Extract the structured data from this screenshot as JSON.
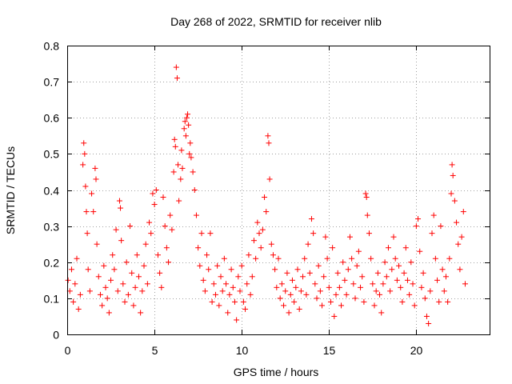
{
  "chart_data": {
    "type": "scatter",
    "title": "Day 268 of 2022, SRMTID for receiver nlib",
    "xlabel": "GPS time / hours",
    "ylabel": "SRMTID / TECUs",
    "xlim": [
      0,
      24.2
    ],
    "ylim": [
      0,
      0.8
    ],
    "x_ticks": [
      0,
      5,
      10,
      15,
      20
    ],
    "x_tick_labels": [
      "0",
      "5",
      "10",
      "15",
      "20"
    ],
    "y_ticks": [
      0,
      0.1,
      0.2,
      0.3,
      0.4,
      0.5,
      0.6,
      0.7,
      0.8
    ],
    "y_tick_labels": [
      "0",
      "0.1",
      "0.2",
      "0.3",
      "0.4",
      "0.5",
      "0.6",
      "0.7",
      "0.8"
    ],
    "grid": true,
    "marker": "+",
    "color": "#ff0000",
    "series": [
      {
        "name": "SRMTID",
        "points": [
          [
            0.05,
            0.15
          ],
          [
            0.15,
            0.12
          ],
          [
            0.25,
            0.18
          ],
          [
            0.35,
            0.09
          ],
          [
            0.45,
            0.14
          ],
          [
            0.55,
            0.21
          ],
          [
            0.65,
            0.07
          ],
          [
            0.75,
            0.11
          ],
          [
            0.9,
            0.47
          ],
          [
            0.95,
            0.53
          ],
          [
            1.0,
            0.5
          ],
          [
            1.05,
            0.41
          ],
          [
            1.1,
            0.34
          ],
          [
            1.15,
            0.28
          ],
          [
            1.2,
            0.18
          ],
          [
            1.3,
            0.12
          ],
          [
            1.4,
            0.39
          ],
          [
            1.5,
            0.34
          ],
          [
            1.6,
            0.46
          ],
          [
            1.65,
            0.43
          ],
          [
            1.7,
            0.25
          ],
          [
            1.8,
            0.16
          ],
          [
            1.9,
            0.11
          ],
          [
            2.0,
            0.08
          ],
          [
            2.1,
            0.19
          ],
          [
            2.2,
            0.13
          ],
          [
            2.3,
            0.1
          ],
          [
            2.4,
            0.06
          ],
          [
            2.5,
            0.15
          ],
          [
            2.6,
            0.22
          ],
          [
            2.7,
            0.18
          ],
          [
            2.8,
            0.29
          ],
          [
            2.9,
            0.12
          ],
          [
            3.0,
            0.37
          ],
          [
            3.05,
            0.35
          ],
          [
            3.1,
            0.26
          ],
          [
            3.2,
            0.14
          ],
          [
            3.3,
            0.09
          ],
          [
            3.4,
            0.2
          ],
          [
            3.5,
            0.11
          ],
          [
            3.6,
            0.3
          ],
          [
            3.7,
            0.17
          ],
          [
            3.8,
            0.08
          ],
          [
            3.9,
            0.13
          ],
          [
            4.0,
            0.22
          ],
          [
            4.1,
            0.16
          ],
          [
            4.2,
            0.06
          ],
          [
            4.3,
            0.12
          ],
          [
            4.4,
            0.19
          ],
          [
            4.5,
            0.25
          ],
          [
            4.6,
            0.14
          ],
          [
            4.7,
            0.31
          ],
          [
            4.8,
            0.28
          ],
          [
            4.9,
            0.39
          ],
          [
            5.0,
            0.36
          ],
          [
            5.1,
            0.4
          ],
          [
            5.2,
            0.22
          ],
          [
            5.3,
            0.17
          ],
          [
            5.4,
            0.13
          ],
          [
            5.5,
            0.38
          ],
          [
            5.6,
            0.3
          ],
          [
            5.7,
            0.24
          ],
          [
            5.8,
            0.2
          ],
          [
            5.9,
            0.33
          ],
          [
            6.0,
            0.29
          ],
          [
            6.1,
            0.45
          ],
          [
            6.15,
            0.54
          ],
          [
            6.2,
            0.52
          ],
          [
            6.25,
            0.74
          ],
          [
            6.3,
            0.71
          ],
          [
            6.35,
            0.47
          ],
          [
            6.4,
            0.37
          ],
          [
            6.5,
            0.43
          ],
          [
            6.55,
            0.51
          ],
          [
            6.6,
            0.46
          ],
          [
            6.7,
            0.57
          ],
          [
            6.75,
            0.59
          ],
          [
            6.8,
            0.55
          ],
          [
            6.85,
            0.6
          ],
          [
            6.9,
            0.61
          ],
          [
            6.95,
            0.58
          ],
          [
            7.0,
            0.5
          ],
          [
            7.05,
            0.53
          ],
          [
            7.1,
            0.49
          ],
          [
            7.2,
            0.45
          ],
          [
            7.3,
            0.4
          ],
          [
            7.4,
            0.33
          ],
          [
            7.5,
            0.24
          ],
          [
            7.6,
            0.19
          ],
          [
            7.7,
            0.28
          ],
          [
            7.8,
            0.15
          ],
          [
            7.9,
            0.12
          ],
          [
            8.0,
            0.22
          ],
          [
            8.1,
            0.18
          ],
          [
            8.2,
            0.28
          ],
          [
            8.3,
            0.09
          ],
          [
            8.4,
            0.14
          ],
          [
            8.5,
            0.11
          ],
          [
            8.6,
            0.19
          ],
          [
            8.7,
            0.08
          ],
          [
            8.8,
            0.16
          ],
          [
            8.9,
            0.12
          ],
          [
            9.0,
            0.21
          ],
          [
            9.1,
            0.14
          ],
          [
            9.2,
            0.06
          ],
          [
            9.3,
            0.11
          ],
          [
            9.4,
            0.18
          ],
          [
            9.5,
            0.13
          ],
          [
            9.6,
            0.09
          ],
          [
            9.7,
            0.04
          ],
          [
            9.8,
            0.16
          ],
          [
            9.9,
            0.12
          ],
          [
            10.0,
            0.19
          ],
          [
            10.1,
            0.09
          ],
          [
            10.2,
            0.07
          ],
          [
            10.3,
            0.14
          ],
          [
            10.4,
            0.22
          ],
          [
            10.5,
            0.11
          ],
          [
            10.6,
            0.16
          ],
          [
            10.7,
            0.26
          ],
          [
            10.8,
            0.21
          ],
          [
            10.9,
            0.31
          ],
          [
            11.0,
            0.28
          ],
          [
            11.1,
            0.24
          ],
          [
            11.2,
            0.29
          ],
          [
            11.3,
            0.38
          ],
          [
            11.4,
            0.34
          ],
          [
            11.5,
            0.55
          ],
          [
            11.55,
            0.53
          ],
          [
            11.6,
            0.43
          ],
          [
            11.7,
            0.25
          ],
          [
            11.8,
            0.22
          ],
          [
            11.9,
            0.18
          ],
          [
            12.0,
            0.13
          ],
          [
            12.1,
            0.21
          ],
          [
            12.2,
            0.1
          ],
          [
            12.3,
            0.14
          ],
          [
            12.4,
            0.08
          ],
          [
            12.5,
            0.12
          ],
          [
            12.6,
            0.17
          ],
          [
            12.7,
            0.06
          ],
          [
            12.8,
            0.11
          ],
          [
            12.9,
            0.15
          ],
          [
            13.0,
            0.09
          ],
          [
            13.1,
            0.13
          ],
          [
            13.2,
            0.18
          ],
          [
            13.3,
            0.07
          ],
          [
            13.4,
            0.12
          ],
          [
            13.5,
            0.16
          ],
          [
            13.6,
            0.21
          ],
          [
            13.7,
            0.11
          ],
          [
            13.8,
            0.25
          ],
          [
            13.9,
            0.17
          ],
          [
            14.0,
            0.32
          ],
          [
            14.1,
            0.28
          ],
          [
            14.2,
            0.14
          ],
          [
            14.3,
            0.1
          ],
          [
            14.4,
            0.19
          ],
          [
            14.5,
            0.12
          ],
          [
            14.6,
            0.08
          ],
          [
            14.7,
            0.16
          ],
          [
            14.8,
            0.27
          ],
          [
            14.9,
            0.21
          ],
          [
            15.0,
            0.13
          ],
          [
            15.1,
            0.09
          ],
          [
            15.2,
            0.24
          ],
          [
            15.3,
            0.05
          ],
          [
            15.4,
            0.11
          ],
          [
            15.5,
            0.17
          ],
          [
            15.6,
            0.13
          ],
          [
            15.7,
            0.08
          ],
          [
            15.8,
            0.2
          ],
          [
            15.9,
            0.15
          ],
          [
            16.0,
            0.11
          ],
          [
            16.1,
            0.18
          ],
          [
            16.2,
            0.27
          ],
          [
            16.3,
            0.21
          ],
          [
            16.4,
            0.14
          ],
          [
            16.5,
            0.1
          ],
          [
            16.6,
            0.19
          ],
          [
            16.7,
            0.23
          ],
          [
            16.8,
            0.13
          ],
          [
            16.9,
            0.16
          ],
          [
            17.0,
            0.09
          ],
          [
            17.1,
            0.39
          ],
          [
            17.15,
            0.38
          ],
          [
            17.2,
            0.33
          ],
          [
            17.3,
            0.28
          ],
          [
            17.4,
            0.21
          ],
          [
            17.5,
            0.14
          ],
          [
            17.6,
            0.08
          ],
          [
            17.7,
            0.12
          ],
          [
            17.8,
            0.17
          ],
          [
            17.9,
            0.11
          ],
          [
            18.0,
            0.06
          ],
          [
            18.1,
            0.14
          ],
          [
            18.2,
            0.2
          ],
          [
            18.3,
            0.16
          ],
          [
            18.4,
            0.24
          ],
          [
            18.5,
            0.12
          ],
          [
            18.6,
            0.18
          ],
          [
            18.7,
            0.27
          ],
          [
            18.8,
            0.21
          ],
          [
            18.9,
            0.15
          ],
          [
            19.0,
            0.19
          ],
          [
            19.1,
            0.13
          ],
          [
            19.2,
            0.09
          ],
          [
            19.3,
            0.17
          ],
          [
            19.4,
            0.24
          ],
          [
            19.5,
            0.15
          ],
          [
            19.6,
            0.11
          ],
          [
            19.7,
            0.2
          ],
          [
            19.8,
            0.14
          ],
          [
            19.9,
            0.08
          ],
          [
            20.0,
            0.3
          ],
          [
            20.1,
            0.32
          ],
          [
            20.2,
            0.23
          ],
          [
            20.3,
            0.13
          ],
          [
            20.4,
            0.17
          ],
          [
            20.5,
            0.1
          ],
          [
            20.6,
            0.05
          ],
          [
            20.7,
            0.03
          ],
          [
            20.8,
            0.12
          ],
          [
            20.9,
            0.28
          ],
          [
            21.0,
            0.33
          ],
          [
            21.1,
            0.21
          ],
          [
            21.2,
            0.15
          ],
          [
            21.3,
            0.09
          ],
          [
            21.4,
            0.3
          ],
          [
            21.5,
            0.18
          ],
          [
            21.6,
            0.12
          ],
          [
            21.7,
            0.16
          ],
          [
            21.8,
            0.09
          ],
          [
            21.9,
            0.21
          ],
          [
            22.0,
            0.39
          ],
          [
            22.05,
            0.47
          ],
          [
            22.1,
            0.44
          ],
          [
            22.2,
            0.37
          ],
          [
            22.3,
            0.31
          ],
          [
            22.4,
            0.25
          ],
          [
            22.5,
            0.18
          ],
          [
            22.6,
            0.27
          ],
          [
            22.7,
            0.34
          ],
          [
            22.8,
            0.14
          ]
        ]
      }
    ]
  }
}
